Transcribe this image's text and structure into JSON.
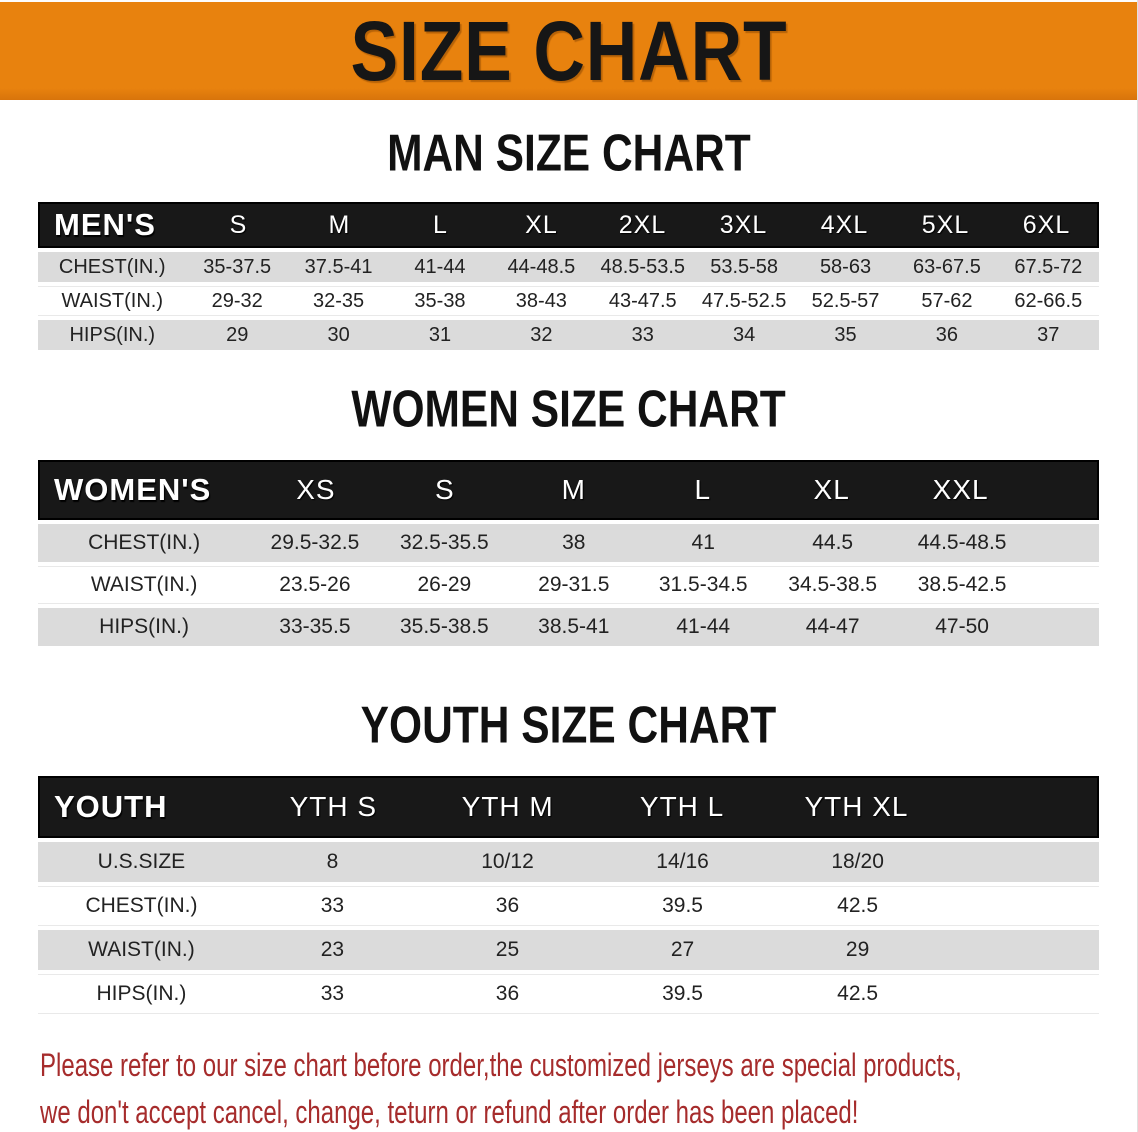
{
  "banner": {
    "title": "SIZE CHART"
  },
  "colors": {
    "banner_bg": "#E8820E",
    "band_bg": "#181818",
    "row_gray": "#DBDBDB",
    "disclaimer_red": "#A62C2C"
  },
  "sections": [
    {
      "title": "MAN SIZE CHART",
      "table": {
        "header_label": "MEN'S",
        "columns": [
          "S",
          "M",
          "L",
          "XL",
          "2XL",
          "3XL",
          "4XL",
          "5XL",
          "6XL"
        ],
        "rows": [
          {
            "label": "CHEST(IN.)",
            "values": [
              "35-37.5",
              "37.5-41",
              "41-44",
              "44-48.5",
              "48.5-53.5",
              "53.5-58",
              "58-63",
              "63-67.5",
              "67.5-72"
            ]
          },
          {
            "label": "WAIST(IN.)",
            "values": [
              "29-32",
              "32-35",
              "35-38",
              "38-43",
              "43-47.5",
              "47.5-52.5",
              "52.5-57",
              "57-62",
              "62-66.5"
            ]
          },
          {
            "label": "HIPS(IN.)",
            "values": [
              "29",
              "30",
              "31",
              "32",
              "33",
              "34",
              "35",
              "36",
              "37"
            ]
          }
        ]
      }
    },
    {
      "title": "WOMEN SIZE CHART",
      "table": {
        "header_label": "WOMEN'S",
        "columns": [
          "XS",
          "S",
          "M",
          "L",
          "XL",
          "XXL"
        ],
        "rows": [
          {
            "label": "CHEST(IN.)",
            "values": [
              "29.5-32.5",
              "32.5-35.5",
              "38",
              "41",
              "44.5",
              "44.5-48.5"
            ]
          },
          {
            "label": "WAIST(IN.)",
            "values": [
              "23.5-26",
              "26-29",
              "29-31.5",
              "31.5-34.5",
              "34.5-38.5",
              "38.5-42.5"
            ]
          },
          {
            "label": "HIPS(IN.)",
            "values": [
              "33-35.5",
              "35.5-38.5",
              "38.5-41",
              "41-44",
              "44-47",
              "47-50"
            ]
          }
        ]
      }
    },
    {
      "title": "YOUTH SIZE CHART",
      "table": {
        "header_label": "YOUTH",
        "columns": [
          "YTH S",
          "YTH M",
          "YTH L",
          "YTH XL"
        ],
        "rows": [
          {
            "label": "U.S.SIZE",
            "values": [
              "8",
              "10/12",
              "14/16",
              "18/20"
            ]
          },
          {
            "label": "CHEST(IN.)",
            "values": [
              "33",
              "36",
              "39.5",
              "42.5"
            ]
          },
          {
            "label": "WAIST(IN.)",
            "values": [
              "23",
              "25",
              "27",
              "29"
            ]
          },
          {
            "label": "HIPS(IN.)",
            "values": [
              "33",
              "36",
              "39.5",
              "42.5"
            ]
          }
        ]
      }
    }
  ],
  "disclaimer": {
    "line1": "Please refer to our size chart before order,the customized jerseys are special products,",
    "line2": "we don't accept cancel, change, teturn or refund after order has been placed!"
  }
}
